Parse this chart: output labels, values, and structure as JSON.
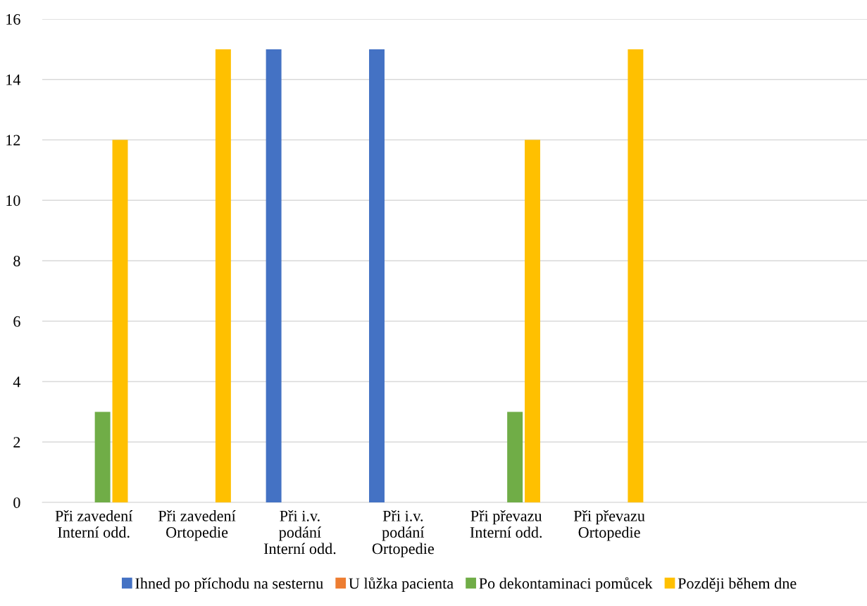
{
  "chart_data": {
    "type": "bar",
    "categories": [
      "Při zavedení\nInterní odd.",
      "Při zavedení\nOrtopedie",
      "Při i.v.\npodání\nInterní odd.",
      "Při i.v.\npodání\nOrtopedie",
      "Při převazu\nInterní odd.",
      "Při převazu\nOrtopedie",
      null,
      null
    ],
    "series": [
      {
        "name": "Ihned po příchodu na sesternu",
        "color": "#4472c4",
        "values": [
          null,
          null,
          15,
          15,
          null,
          null,
          null,
          null
        ]
      },
      {
        "name": "U lůžka pacienta",
        "color": "#ed7d31",
        "values": [
          null,
          null,
          null,
          null,
          null,
          null,
          null,
          null
        ]
      },
      {
        "name": "Po dekontaminaci pomůcek",
        "color": "#70ad47",
        "values": [
          3,
          null,
          null,
          null,
          3,
          null,
          null,
          null
        ]
      },
      {
        "name": "Později během dne",
        "color": "#ffc000",
        "values": [
          12,
          15,
          null,
          null,
          12,
          15,
          null,
          null
        ]
      }
    ],
    "ylim": [
      0,
      16
    ],
    "yticks": [
      0,
      2,
      4,
      6,
      8,
      10,
      12,
      14,
      16
    ],
    "grid": "y",
    "legend": "bottom"
  }
}
